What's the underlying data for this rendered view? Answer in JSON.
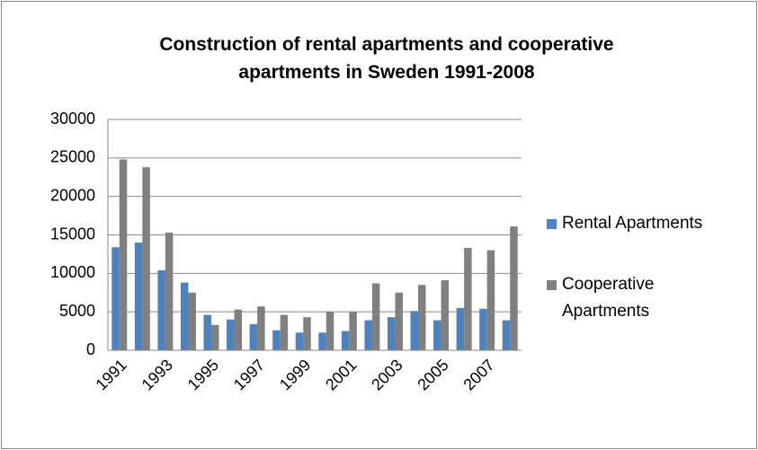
{
  "chart_data": {
    "type": "bar",
    "title": "Construction of rental apartments and cooperative apartments in Sweden 1991-2008",
    "categories": [
      "1991",
      null,
      "1993",
      null,
      "1995",
      null,
      "1997",
      null,
      "1999",
      null,
      "2001",
      null,
      "2003",
      null,
      "2005",
      null,
      "2007",
      null
    ],
    "series": [
      {
        "name": "Rental Apartments",
        "color": "#4f81bd",
        "values": [
          13400,
          14000,
          10400,
          8800,
          4600,
          4000,
          3400,
          2600,
          2300,
          2300,
          2500,
          3900,
          4300,
          5100,
          3900,
          5500,
          5400,
          3900
        ]
      },
      {
        "name": "Cooperative Apartments",
        "color": "#808080",
        "values": [
          24800,
          23800,
          15300,
          7500,
          3300,
          5300,
          5700,
          4600,
          4300,
          5000,
          5000,
          8700,
          7500,
          8500,
          9100,
          13300,
          13000,
          16100
        ]
      }
    ],
    "ylim": [
      0,
      30000
    ],
    "yticks": [
      0,
      5000,
      10000,
      15000,
      20000,
      25000,
      30000
    ],
    "grid": true,
    "legend": "right"
  }
}
